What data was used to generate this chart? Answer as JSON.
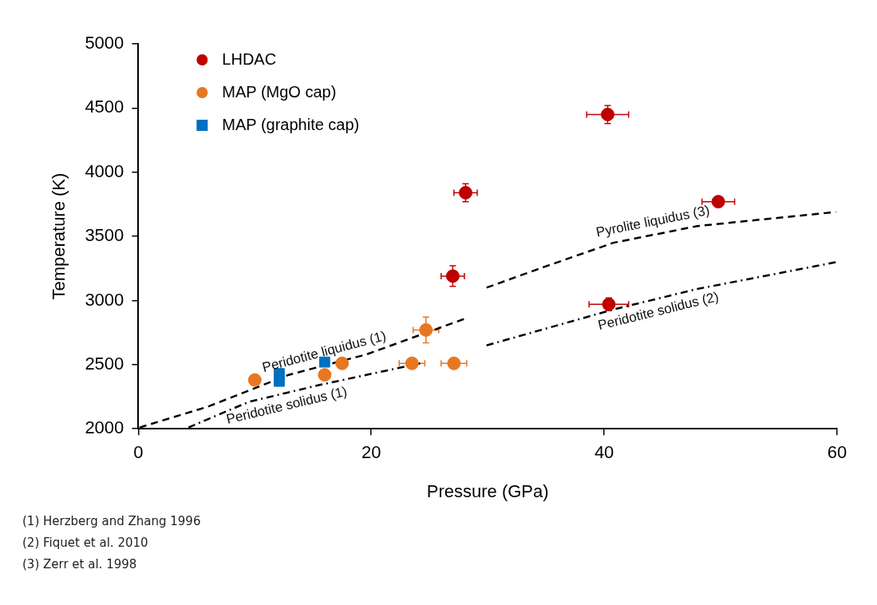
{
  "chart_data": {
    "type": "scatter",
    "xlabel": "Pressure (GPa)",
    "ylabel": "Temperature (K)",
    "xlim": [
      0,
      60
    ],
    "xticks": [
      0,
      20,
      40,
      60
    ],
    "ylim": [
      2000,
      5000
    ],
    "yticks": [
      2000,
      2500,
      3000,
      3500,
      4000,
      4500,
      5000
    ],
    "grid": false,
    "legend": "top left",
    "series": [
      {
        "name": "LHDAC",
        "type": "scatter",
        "marker": "circle",
        "color": "#c00000",
        "x": [
          40.3,
          28.1,
          49.8,
          27.0,
          40.4
        ],
        "values": [
          4450,
          3840,
          3770,
          3190,
          2970
        ],
        "errors": [
          70,
          70,
          null,
          80,
          50
        ],
        "xerrors": [
          1.8,
          1.0,
          1.4,
          1.0,
          1.7
        ]
      },
      {
        "name": "MAP (MgO cap)",
        "type": "scatter",
        "marker": "circle",
        "color": "#e87722",
        "x": [
          10.0,
          16.0,
          17.5,
          23.5,
          27.1,
          24.7
        ],
        "values": [
          2380,
          2420,
          2510,
          2510,
          2510,
          2770
        ],
        "errors": [
          null,
          null,
          null,
          null,
          null,
          100
        ],
        "xerrors": [
          null,
          null,
          null,
          1.1,
          1.1,
          1.1
        ]
      },
      {
        "name": "MAP (graphite cap)",
        "type": "scatter",
        "marker": "square",
        "color": "#0070c0",
        "x": [
          12.1,
          12.1,
          16.0
        ],
        "values": [
          2430,
          2370,
          2520
        ]
      },
      {
        "name": "Peridotite liquidus (1)",
        "type": "line",
        "marker": "none",
        "line_style": "dashed",
        "color": "#000000",
        "x": [
          0.1,
          5.9,
          12.9,
          19.6,
          28.1
        ],
        "values": [
          2010,
          2170,
          2420,
          2580,
          2860
        ]
      },
      {
        "name": "Peridotite solidus (1)",
        "type": "line",
        "marker": "none",
        "line_style": "dashdot",
        "color": "#000000",
        "x": [
          4.3,
          9.5,
          15.5,
          24.2
        ],
        "values": [
          2010,
          2210,
          2340,
          2510
        ]
      },
      {
        "name": "Pyrolite liquidus (3)",
        "type": "line",
        "marker": "none",
        "line_style": "dashed",
        "color": "#000000",
        "x": [
          29.9,
          34.8,
          40.8,
          48.0,
          59.9
        ],
        "values": [
          3100,
          3260,
          3450,
          3580,
          3690
        ]
      },
      {
        "name": "Peridotite solidus (2)",
        "type": "line",
        "marker": "none",
        "line_style": "dashdot",
        "color": "#000000",
        "x": [
          29.9,
          40.8,
          48.0,
          60.0
        ],
        "values": [
          2650,
          2930,
          3090,
          3300
        ]
      }
    ],
    "annotations": [
      "(1) Herzberg and Zhang 1996",
      "(2) Fiquet et al. 2010",
      "(3) Zerr et al. 1998"
    ]
  }
}
